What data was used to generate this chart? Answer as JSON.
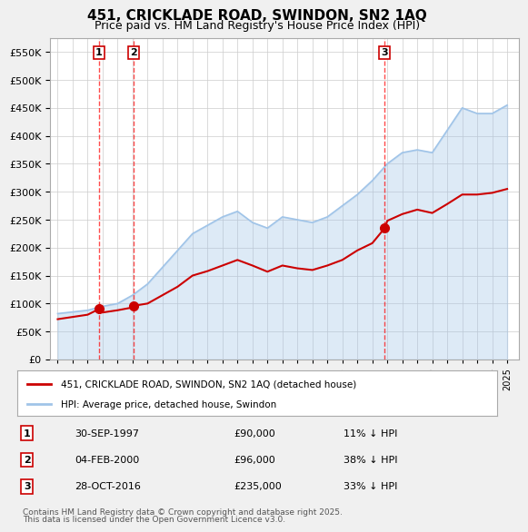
{
  "title1": "451, CRICKLADE ROAD, SWINDON, SN2 1AQ",
  "title2": "Price paid vs. HM Land Registry's House Price Index (HPI)",
  "ylabel": "",
  "background_color": "#f0f0f0",
  "plot_bg_color": "#ffffff",
  "grid_color": "#cccccc",
  "hpi_color": "#a0c4e8",
  "price_color": "#cc0000",
  "transactions": [
    {
      "num": 1,
      "date_num": 1997.75,
      "price": 90000,
      "label": "1",
      "pct": "11% ↓ HPI",
      "date_str": "30-SEP-1997"
    },
    {
      "num": 2,
      "date_num": 2000.09,
      "price": 96000,
      "label": "2",
      "pct": "38% ↓ HPI",
      "date_str": "04-FEB-2000"
    },
    {
      "num": 3,
      "date_num": 2016.83,
      "price": 235000,
      "label": "3",
      "pct": "33% ↓ HPI",
      "date_str": "28-OCT-2016"
    }
  ],
  "ylim": [
    0,
    575000
  ],
  "yticks": [
    0,
    50000,
    100000,
    150000,
    200000,
    250000,
    300000,
    350000,
    400000,
    450000,
    500000,
    550000
  ],
  "xlim_left": 1994.5,
  "xlim_right": 2025.8,
  "legend_label1": "451, CRICKLADE ROAD, SWINDON, SN2 1AQ (detached house)",
  "legend_label2": "HPI: Average price, detached house, Swindon",
  "footer1": "Contains HM Land Registry data © Crown copyright and database right 2025.",
  "footer2": "This data is licensed under the Open Government Licence v3.0."
}
